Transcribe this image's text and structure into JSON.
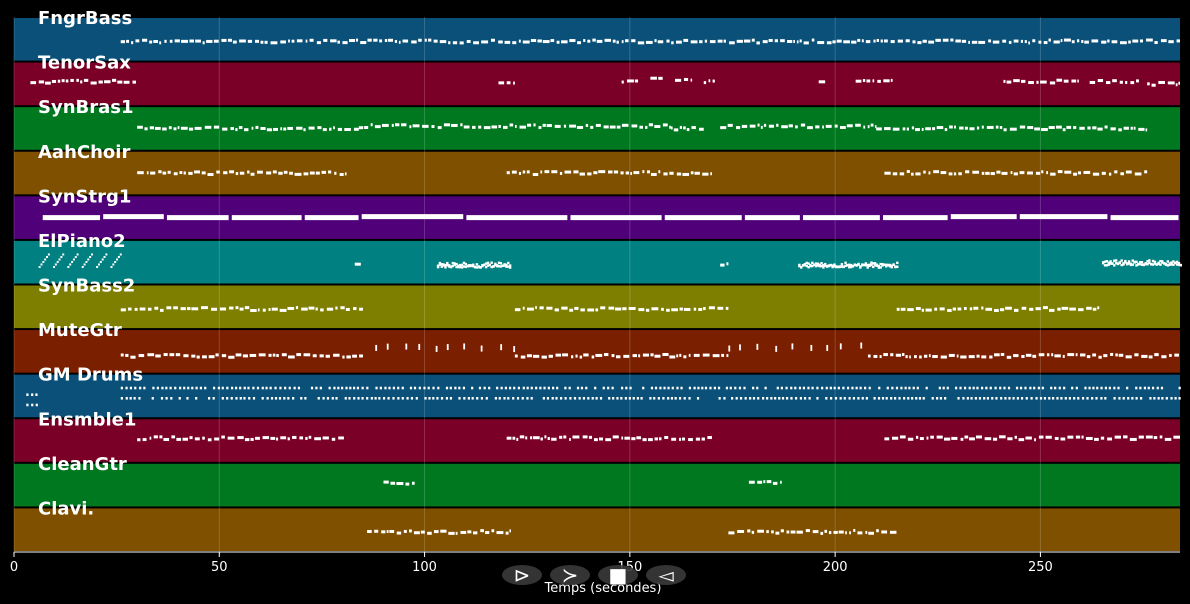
{
  "chart_data": {
    "type": "piano-roll",
    "xlabel": "Temps (secondes)",
    "xlim": [
      0,
      284
    ],
    "x_ticks": [
      0,
      50,
      100,
      150,
      200,
      250
    ],
    "grid": true,
    "background": "#000000",
    "note_color": "#ffffff",
    "tracks": [
      {
        "name": "FngrBass",
        "color": "#0a5078",
        "segments": [
          [
            26,
            284,
            0.55,
            "dense"
          ]
        ]
      },
      {
        "name": "TenorSax",
        "color": "#7a0028",
        "segments": [
          [
            4,
            30,
            0.45,
            "dense"
          ],
          [
            118,
            122,
            0.45,
            "phrase"
          ],
          [
            148,
            152,
            0.45,
            "phrase"
          ],
          [
            155,
            158,
            0.4,
            "phrase"
          ],
          [
            161,
            165,
            0.4,
            "phrase"
          ],
          [
            168,
            171,
            0.45,
            "phrase"
          ],
          [
            196,
            198,
            0.45,
            "phrase"
          ],
          [
            205,
            214,
            0.45,
            "phrase"
          ],
          [
            241,
            259,
            0.45,
            "phrase"
          ],
          [
            262,
            274,
            0.45,
            "phrase"
          ],
          [
            276,
            284,
            0.5,
            "phrase"
          ]
        ]
      },
      {
        "name": "SynBras1",
        "color": "#007820",
        "segments": [
          [
            30,
            84,
            0.5,
            "dense"
          ],
          [
            84,
            160,
            0.45,
            "dense"
          ],
          [
            160,
            168,
            0.5,
            "dense"
          ],
          [
            172,
            210,
            0.45,
            "dense"
          ],
          [
            210,
            276,
            0.5,
            "dense"
          ]
        ]
      },
      {
        "name": "AahChoir",
        "color": "#7e5000",
        "segments": [
          [
            30,
            81,
            0.5,
            "dense"
          ],
          [
            120,
            170,
            0.5,
            "dense"
          ],
          [
            212,
            276,
            0.5,
            "dense"
          ]
        ]
      },
      {
        "name": "SynStrg1",
        "color": "#500078",
        "segments": [
          [
            7,
            284,
            0.5,
            "long"
          ]
        ]
      },
      {
        "name": "ElPiano2",
        "color": "#008080",
        "segments": [
          [
            6,
            26,
            0.45,
            "arp"
          ],
          [
            83,
            85,
            0.55,
            "phrase"
          ],
          [
            103,
            121,
            0.55,
            "cluster"
          ],
          [
            172,
            174,
            0.55,
            "phrase"
          ],
          [
            191,
            215,
            0.55,
            "cluster"
          ],
          [
            265,
            284,
            0.5,
            "cluster"
          ]
        ]
      },
      {
        "name": "SynBass2",
        "color": "#7e7e00",
        "segments": [
          [
            26,
            85,
            0.55,
            "dense"
          ],
          [
            122,
            174,
            0.55,
            "dense"
          ],
          [
            215,
            265,
            0.55,
            "dense"
          ]
        ]
      },
      {
        "name": "MuteGtr",
        "color": "#7a2000",
        "segments": [
          [
            26,
            85,
            0.6,
            "dense"
          ],
          [
            88,
            122,
            0.45,
            "sparse"
          ],
          [
            122,
            174,
            0.6,
            "dense"
          ],
          [
            174,
            208,
            0.45,
            "sparse"
          ],
          [
            208,
            284,
            0.6,
            "dense"
          ]
        ]
      },
      {
        "name": "GM Drums",
        "color": "#0a5078",
        "segments": [
          [
            3,
            6,
            0.65,
            "drum"
          ],
          [
            26,
            284,
            0.5,
            "drum"
          ]
        ]
      },
      {
        "name": "Ensmble1",
        "color": "#7a0028",
        "segments": [
          [
            30,
            81,
            0.45,
            "dense"
          ],
          [
            120,
            170,
            0.45,
            "dense"
          ],
          [
            212,
            284,
            0.45,
            "dense"
          ]
        ]
      },
      {
        "name": "CleanGtr",
        "color": "#007820",
        "segments": [
          [
            90,
            98,
            0.45,
            "phrase"
          ],
          [
            179,
            187,
            0.45,
            "phrase"
          ]
        ]
      },
      {
        "name": "Clavi.",
        "color": "#7e5000",
        "segments": [
          [
            86,
            121,
            0.55,
            "dense"
          ],
          [
            174,
            215,
            0.55,
            "dense"
          ]
        ]
      }
    ]
  },
  "controls": [
    {
      "name": "play-button",
      "glyph": "⊳"
    },
    {
      "name": "next-button",
      "glyph": "≻"
    },
    {
      "name": "stop-button",
      "glyph": "■"
    },
    {
      "name": "prev-button",
      "glyph": "◅"
    }
  ]
}
